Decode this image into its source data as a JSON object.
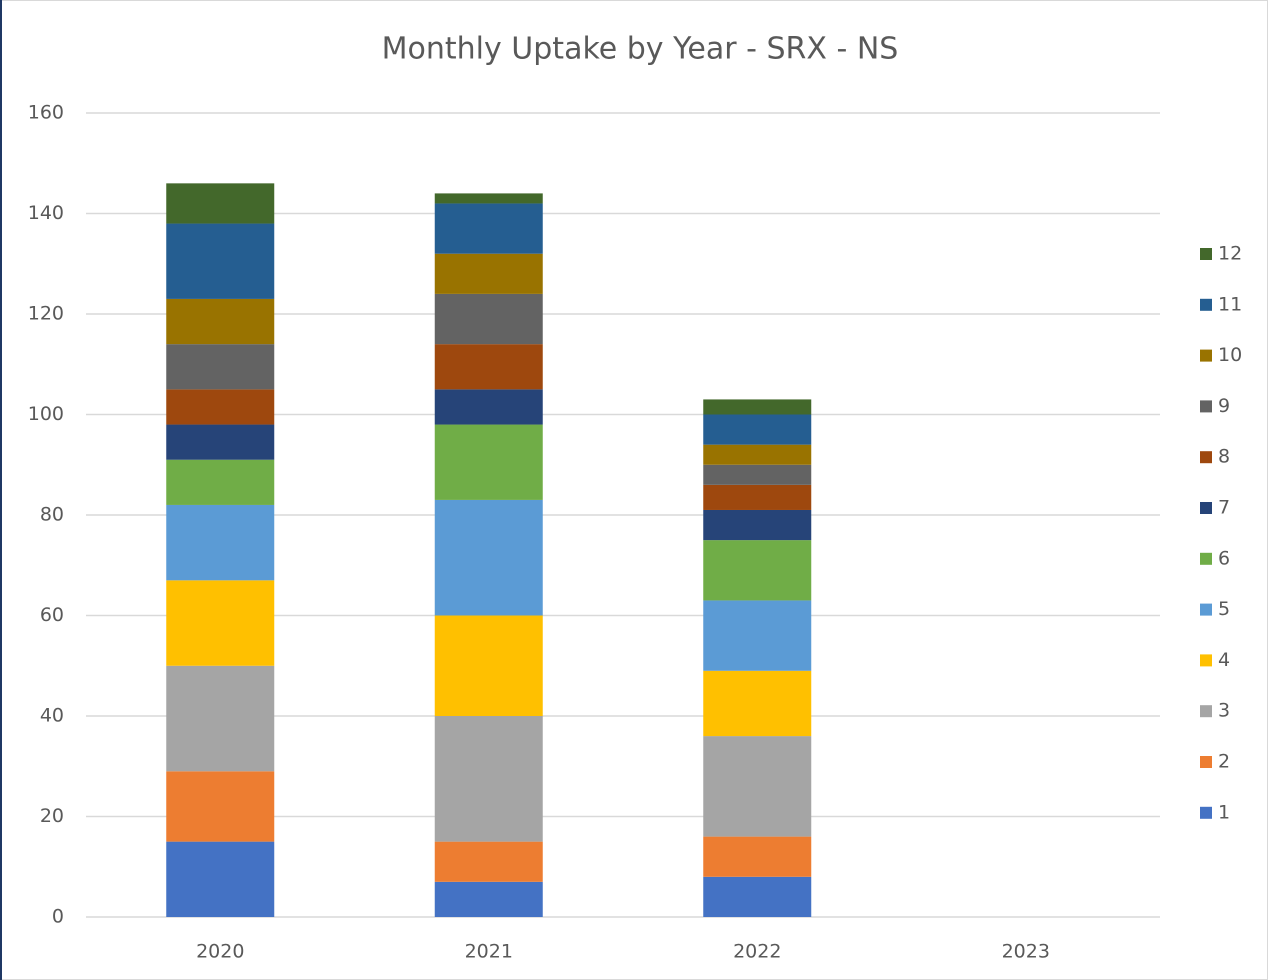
{
  "chart_data": {
    "type": "stacked_bar",
    "title": "Monthly Uptake by Year - SRX - NS",
    "categories": [
      "2020",
      "2021",
      "2022",
      "2023"
    ],
    "series": [
      {
        "name": "1",
        "color": "#4472c4",
        "values": [
          15,
          7,
          8,
          null
        ]
      },
      {
        "name": "2",
        "color": "#ed7d31",
        "values": [
          14,
          8,
          8,
          null
        ]
      },
      {
        "name": "3",
        "color": "#a5a5a5",
        "values": [
          21,
          25,
          20,
          null
        ]
      },
      {
        "name": "4",
        "color": "#ffc000",
        "values": [
          17,
          20,
          13,
          null
        ]
      },
      {
        "name": "5",
        "color": "#5b9bd5",
        "values": [
          15,
          23,
          14,
          null
        ]
      },
      {
        "name": "6",
        "color": "#70ad47",
        "values": [
          9,
          15,
          12,
          null
        ]
      },
      {
        "name": "7",
        "color": "#264478",
        "values": [
          7,
          7,
          6,
          null
        ]
      },
      {
        "name": "8",
        "color": "#9e480e",
        "values": [
          7,
          9,
          5,
          null
        ]
      },
      {
        "name": "9",
        "color": "#636363",
        "values": [
          9,
          10,
          4,
          null
        ]
      },
      {
        "name": "10",
        "color": "#997300",
        "values": [
          9,
          8,
          4,
          null
        ]
      },
      {
        "name": "11",
        "color": "#255e91",
        "values": [
          15,
          10,
          6,
          null
        ]
      },
      {
        "name": "12",
        "color": "#43682b",
        "values": [
          8,
          2,
          3,
          null
        ]
      }
    ],
    "ylim": [
      0,
      160
    ],
    "yticks": [
      0,
      20,
      40,
      60,
      80,
      100,
      120,
      140,
      160
    ],
    "grid": true,
    "legend": "right"
  }
}
